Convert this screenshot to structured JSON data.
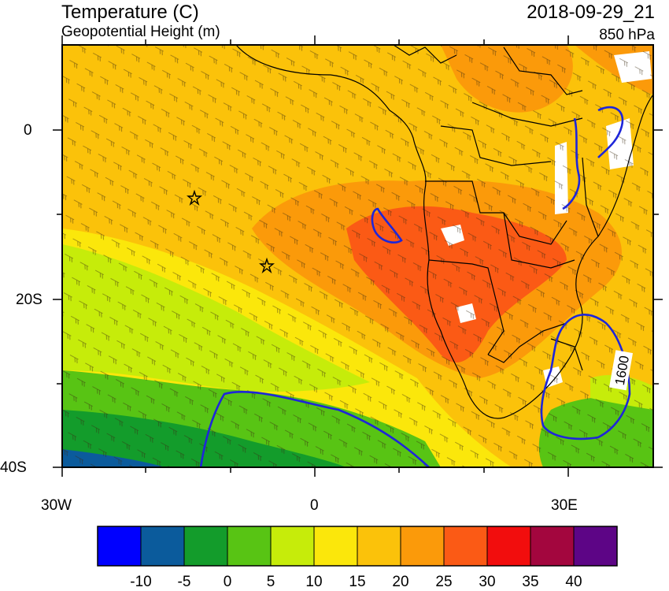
{
  "header": {
    "title": "Temperature (C)",
    "subtitle": "Geopotential Height (m)",
    "datetime": "2018-09-29_21",
    "level": "850 hPa"
  },
  "axes": {
    "x_ticks": [
      "30W",
      "0",
      "30E"
    ],
    "y_ticks": [
      "0",
      "20S",
      "40S"
    ]
  },
  "contour_label": "1600",
  "colorbar": {
    "colors": [
      "#0000ff",
      "#0b5b9c",
      "#139c2b",
      "#58c414",
      "#c6ec0a",
      "#fbe70b",
      "#fbc20a",
      "#fb9a0a",
      "#fb5a15",
      "#f20d0d",
      "#a3063e",
      "#5d0586"
    ],
    "labels": [
      "-10",
      "-5",
      "0",
      "5",
      "10",
      "15",
      "20",
      "25",
      "30",
      "35",
      "40"
    ]
  },
  "map_colors": {
    "frame": "#000000",
    "contour": "#1e26d9"
  }
}
